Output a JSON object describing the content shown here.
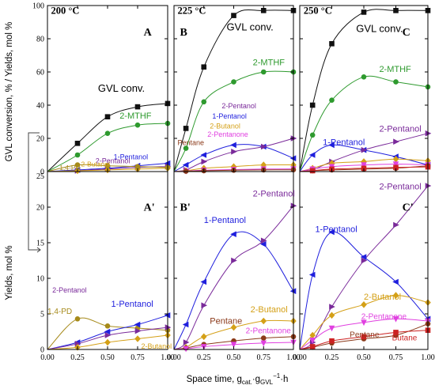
{
  "ylabel_top": "GVL conversion, % / Yields, mol %",
  "ylabel_bottom": "Yields, mol %",
  "xlabel_main": "Space time, g",
  "xlabel_sub1": "cat.",
  "xlabel_mid": "·g",
  "xlabel_sub2": "GVL",
  "xlabel_sup": "−1",
  "xlabel_end": "·h",
  "colors": {
    "GVL conv.": "#111111",
    "2-MTHF": "#2e9a2e",
    "1-Pentanol": "#1f1fdd",
    "2-Pentanol": "#7a2a9a",
    "2-Butanol": "#d4a017",
    "1,4-PD": "#a68a1a",
    "Pentane": "#8b3a1a",
    "2-Pentanone": "#e040e0",
    "Butane": "#cc2222"
  },
  "chart_data": [
    {
      "panel": "A",
      "temp_label": "200 °C",
      "type": "scatter",
      "xlim": [
        0,
        1
      ],
      "ylim": [
        0,
        100
      ],
      "xticks": [
        "0.00",
        "0.25",
        "0.50",
        "0.75",
        "1.00"
      ],
      "yticks": [
        "0",
        "20",
        "40",
        "60",
        "80",
        "100"
      ],
      "annotations": [
        {
          "text": "GVL conv.",
          "series": "GVL conv."
        },
        {
          "text": "2-MTHF",
          "series": "2-MTHF"
        },
        {
          "text": "1-Pentanol",
          "series": "1-Pentanol"
        },
        {
          "text": "2-Pentanol",
          "series": "2-Pentanol"
        },
        {
          "text": "2-Butanol",
          "series": "2-Butanol"
        },
        {
          "text": "1,4-PD",
          "series": "1,4-PD"
        }
      ],
      "series": [
        {
          "name": "GVL conv.",
          "marker": "square",
          "x": [
            0.25,
            0.5,
            0.75,
            1.0
          ],
          "y": [
            17,
            33,
            39,
            41
          ]
        },
        {
          "name": "2-MTHF",
          "marker": "circle",
          "x": [
            0.25,
            0.5,
            0.75,
            1.0
          ],
          "y": [
            10,
            23,
            28,
            29
          ]
        },
        {
          "name": "1-Pentanol",
          "marker": "tri-left",
          "x": [
            0.25,
            0.5,
            0.75,
            1.0
          ],
          "y": [
            1,
            2,
            3.5,
            5
          ]
        },
        {
          "name": "2-Pentanol",
          "marker": "tri-right",
          "x": [
            0.25,
            0.5,
            0.75,
            1.0
          ],
          "y": [
            0.5,
            1.5,
            2.5,
            3
          ]
        },
        {
          "name": "2-Butanol",
          "marker": "diamond",
          "x": [
            0.25,
            0.5,
            0.75,
            1.0
          ],
          "y": [
            0.5,
            1,
            1.5,
            2
          ]
        },
        {
          "name": "1,4-PD",
          "marker": "circle",
          "x": [
            0.25,
            0.5,
            0.75,
            1.0
          ],
          "y": [
            4,
            3.5,
            3,
            2.5
          ]
        }
      ]
    },
    {
      "panel": "B",
      "temp_label": "225 °C",
      "type": "scatter",
      "xlim": [
        0,
        1
      ],
      "ylim": [
        0,
        100
      ],
      "xticks": [
        "0.00",
        "0.25",
        "0.50",
        "0.75",
        "1.00"
      ],
      "annotations": [
        {
          "text": "GVL conv.",
          "series": "GVL conv."
        },
        {
          "text": "2-MTHF",
          "series": "2-MTHF"
        },
        {
          "text": "2-Pentanol",
          "series": "2-Pentanol"
        },
        {
          "text": "1-Pentanol",
          "series": "1-Pentanol"
        },
        {
          "text": "2-Butanol",
          "series": "2-Butanol"
        },
        {
          "text": "2-Pentanone",
          "series": "2-Pentanone"
        },
        {
          "text": "Pentane",
          "series": "Pentane"
        }
      ],
      "series": [
        {
          "name": "GVL conv.",
          "marker": "square",
          "x": [
            0.1,
            0.25,
            0.5,
            0.75,
            1.0
          ],
          "y": [
            26,
            63,
            94,
            97,
            97
          ]
        },
        {
          "name": "2-MTHF",
          "marker": "circle",
          "x": [
            0.1,
            0.25,
            0.5,
            0.75,
            1.0
          ],
          "y": [
            14,
            42,
            54,
            60,
            60
          ]
        },
        {
          "name": "1-Pentanol",
          "marker": "tri-left",
          "x": [
            0.1,
            0.25,
            0.5,
            0.75,
            1.0
          ],
          "y": [
            4,
            10,
            16,
            15,
            8
          ]
        },
        {
          "name": "2-Pentanol",
          "marker": "tri-right",
          "x": [
            0.1,
            0.25,
            0.5,
            0.75,
            1.0
          ],
          "y": [
            1,
            6,
            12,
            15,
            20
          ]
        },
        {
          "name": "2-Butanol",
          "marker": "diamond",
          "x": [
            0.1,
            0.25,
            0.5,
            0.75,
            1.0
          ],
          "y": [
            0.5,
            2,
            3,
            4,
            4
          ]
        },
        {
          "name": "2-Pentanone",
          "marker": "tri-down",
          "x": [
            0.1,
            0.25,
            0.5,
            0.75,
            1.0
          ],
          "y": [
            0.3,
            0.8,
            1.2,
            1.5,
            1.6
          ]
        },
        {
          "name": "Pentane",
          "marker": "circle",
          "x": [
            0.1,
            0.25,
            0.5,
            0.75,
            1.0
          ],
          "y": [
            0.2,
            0.5,
            0.8,
            1,
            1.1
          ]
        }
      ]
    },
    {
      "panel": "C",
      "temp_label": "250 °C",
      "type": "scatter",
      "xlim": [
        0,
        1
      ],
      "ylim": [
        0,
        100
      ],
      "xticks": [
        "0.00",
        "0.25",
        "0.50",
        "0.75",
        "1.00"
      ],
      "annotations": [
        {
          "text": "GVL conv.",
          "series": "GVL conv."
        },
        {
          "text": "2-MTHF",
          "series": "2-MTHF"
        },
        {
          "text": "1-Pentanol",
          "series": "1-Pentanol"
        },
        {
          "text": "2-Pentanol",
          "series": "2-Pentanol"
        }
      ],
      "series": [
        {
          "name": "GVL conv.",
          "marker": "square",
          "x": [
            0.1,
            0.25,
            0.5,
            0.75,
            1.0
          ],
          "y": [
            40,
            77,
            96,
            97,
            97
          ]
        },
        {
          "name": "2-MTHF",
          "marker": "circle",
          "x": [
            0.1,
            0.25,
            0.5,
            0.75,
            1.0
          ],
          "y": [
            22,
            43,
            57,
            54,
            51
          ]
        },
        {
          "name": "1-Pentanol",
          "marker": "tri-left",
          "x": [
            0.1,
            0.25,
            0.5,
            0.75,
            1.0
          ],
          "y": [
            10,
            16,
            13,
            9,
            4
          ]
        },
        {
          "name": "2-Pentanol",
          "marker": "tri-right",
          "x": [
            0.1,
            0.25,
            0.5,
            0.75,
            1.0
          ],
          "y": [
            1,
            6,
            13,
            18,
            23
          ]
        },
        {
          "name": "2-Butanol",
          "marker": "diamond",
          "x": [
            0.1,
            0.25,
            0.5,
            0.75,
            1.0
          ],
          "y": [
            2,
            5,
            6,
            7.5,
            6.5
          ]
        },
        {
          "name": "2-Pentanone",
          "marker": "tri-down",
          "x": [
            0.1,
            0.25,
            0.5,
            0.75,
            1.0
          ],
          "y": [
            1.5,
            3,
            4,
            4.5,
            4
          ]
        },
        {
          "name": "Pentane",
          "marker": "circle",
          "x": [
            0.1,
            0.25,
            0.5,
            0.75,
            1.0
          ],
          "y": [
            0.5,
            1,
            1.5,
            2,
            3.5
          ]
        },
        {
          "name": "Butane",
          "marker": "square",
          "x": [
            0.1,
            0.25,
            0.5,
            0.75,
            1.0
          ],
          "y": [
            0.5,
            1.5,
            2,
            2.5,
            2.8
          ]
        }
      ]
    },
    {
      "panel": "A'",
      "type": "scatter",
      "xlim": [
        0,
        1
      ],
      "ylim": [
        0,
        25
      ],
      "xticks": [
        "0.00",
        "0.25",
        "0.50",
        "0.75",
        "1.00"
      ],
      "yticks": [
        "0",
        "5",
        "10",
        "15",
        "20",
        "25"
      ],
      "annotations": [
        {
          "text": "2-Pentanol",
          "series": "2-Pentanol"
        },
        {
          "text": "1-Pentanol",
          "series": "1-Pentanol"
        },
        {
          "text": "1,4-PD",
          "series": "1,4-PD"
        },
        {
          "text": "2-Butanol",
          "series": "2-Butanol"
        }
      ],
      "series": [
        {
          "name": "1,4-PD",
          "marker": "circle",
          "x": [
            0.25,
            0.5,
            0.75,
            1.0
          ],
          "y": [
            4.3,
            3.3,
            3.0,
            2.7
          ]
        },
        {
          "name": "1-Pentanol",
          "marker": "tri-left",
          "x": [
            0.25,
            0.5,
            0.75,
            1.0
          ],
          "y": [
            1.0,
            2.5,
            3.5,
            4.8
          ]
        },
        {
          "name": "2-Pentanol",
          "marker": "tri-right",
          "x": [
            0.25,
            0.5,
            0.75,
            1.0
          ],
          "y": [
            0.8,
            2.0,
            2.6,
            3.1
          ]
        },
        {
          "name": "2-Butanol",
          "marker": "diamond",
          "x": [
            0.25,
            0.5,
            0.75,
            1.0
          ],
          "y": [
            0.3,
            1.0,
            1.5,
            2.0
          ]
        }
      ]
    },
    {
      "panel": "B'",
      "type": "scatter",
      "xlim": [
        0,
        1
      ],
      "ylim": [
        0,
        25
      ],
      "xticks": [
        "0.00",
        "0.25",
        "0.50",
        "0.75",
        "1.00"
      ],
      "annotations": [
        {
          "text": "2-Pentanol",
          "series": "2-Pentanol"
        },
        {
          "text": "1-Pentanol",
          "series": "1-Pentanol"
        },
        {
          "text": "2-Butanol",
          "series": "2-Butanol"
        },
        {
          "text": "Pentane",
          "series": "Pentane"
        },
        {
          "text": "2-Pentanone",
          "series": "2-Pentanone"
        }
      ],
      "series": [
        {
          "name": "1-Pentanol",
          "marker": "tri-left",
          "x": [
            0.1,
            0.25,
            0.5,
            0.75,
            1.0
          ],
          "y": [
            3.5,
            9.5,
            16.2,
            14.8,
            8.2
          ]
        },
        {
          "name": "2-Pentanol",
          "marker": "tri-right",
          "x": [
            0.1,
            0.25,
            0.5,
            0.75,
            1.0
          ],
          "y": [
            1.0,
            6.2,
            12.5,
            15.3,
            20.2
          ]
        },
        {
          "name": "2-Butanol",
          "marker": "diamond",
          "x": [
            0.1,
            0.25,
            0.5,
            0.75,
            1.0
          ],
          "y": [
            0.3,
            1.8,
            3.1,
            4.0,
            4.0
          ]
        },
        {
          "name": "Pentane",
          "marker": "circle",
          "x": [
            0.1,
            0.25,
            0.5,
            0.75,
            1.0
          ],
          "y": [
            0.2,
            0.7,
            1.2,
            1.6,
            1.8
          ]
        },
        {
          "name": "2-Pentanone",
          "marker": "tri-down",
          "x": [
            0.1,
            0.25,
            0.5,
            0.75,
            1.0
          ],
          "y": [
            0.1,
            0.4,
            0.7,
            0.9,
            1.0
          ]
        }
      ]
    },
    {
      "panel": "C'",
      "type": "scatter",
      "xlim": [
        0,
        1
      ],
      "ylim": [
        0,
        25
      ],
      "xticks": [
        "0.00",
        "0.25",
        "0.50",
        "0.75",
        "1.00"
      ],
      "annotations": [
        {
          "text": "2-Pentanol",
          "series": "2-Pentanol"
        },
        {
          "text": "1-Pentanol",
          "series": "1-Pentanol"
        },
        {
          "text": "2-Butanol",
          "series": "2-Butanol"
        },
        {
          "text": "2-Pentanone",
          "series": "2-Pentanone"
        },
        {
          "text": "Pentane",
          "series": "Pentane"
        },
        {
          "text": "Butane",
          "series": "Butane"
        }
      ],
      "series": [
        {
          "name": "1-Pentanol",
          "marker": "tri-left",
          "x": [
            0.1,
            0.25,
            0.5,
            0.75,
            1.0
          ],
          "y": [
            10.5,
            16.5,
            13.0,
            9.5,
            4.3
          ]
        },
        {
          "name": "2-Pentanol",
          "marker": "tri-right",
          "x": [
            0.1,
            0.25,
            0.5,
            0.75,
            1.0
          ],
          "y": [
            1.0,
            6.0,
            12.5,
            17.5,
            23.0
          ]
        },
        {
          "name": "2-Butanol",
          "marker": "diamond",
          "x": [
            0.1,
            0.25,
            0.5,
            0.75,
            1.0
          ],
          "y": [
            2.0,
            4.8,
            6.3,
            7.6,
            6.6
          ]
        },
        {
          "name": "2-Pentanone",
          "marker": "tri-down",
          "x": [
            0.1,
            0.25,
            0.5,
            0.75,
            1.0
          ],
          "y": [
            1.3,
            3.0,
            3.8,
            4.3,
            4.0
          ]
        },
        {
          "name": "Pentane",
          "marker": "circle",
          "x": [
            0.1,
            0.25,
            0.5,
            0.75,
            1.0
          ],
          "y": [
            0.3,
            0.9,
            1.5,
            2.0,
            3.6
          ]
        },
        {
          "name": "Butane",
          "marker": "square",
          "x": [
            0.1,
            0.25,
            0.5,
            0.75,
            1.0
          ],
          "y": [
            0.4,
            1.2,
            1.8,
            2.4,
            2.7
          ]
        }
      ]
    }
  ]
}
